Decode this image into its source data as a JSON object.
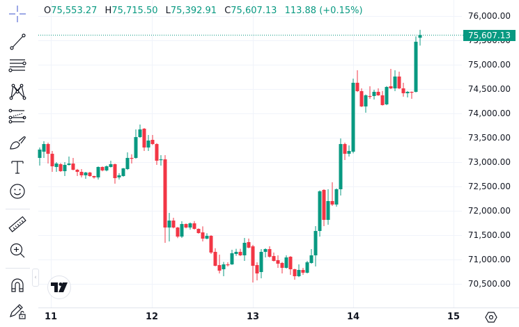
{
  "legend": {
    "o_label": "O",
    "o_value": "75,553.27",
    "h_label": "H",
    "h_value": "75,715.50",
    "l_label": "L",
    "l_value": "75,392.91",
    "c_label": "C",
    "c_value": "75,607.13",
    "change": "113.88 (+0.15%)"
  },
  "toolbar": {
    "tools": [
      {
        "icon": "crosshair-icon",
        "active": true
      },
      {
        "icon": "trend-line-icon"
      },
      {
        "icon": "horizontal-lines-icon"
      },
      {
        "icon": "pattern-icon"
      },
      {
        "icon": "fib-channel-icon"
      },
      {
        "icon": "brush-icon"
      },
      {
        "icon": "text-icon"
      },
      {
        "icon": "emoji-icon"
      },
      {
        "icon": "ruler-icon"
      },
      {
        "icon": "zoom-in-icon"
      },
      {
        "icon": "magnet-icon"
      },
      {
        "icon": "lock-drawings-icon"
      }
    ],
    "collapse_glyph": "‹"
  },
  "price_axis": {
    "labels": [
      "76,000.00",
      "75,500.00",
      "75,000.00",
      "74,500.00",
      "74,000.00",
      "73,500.00",
      "73,000.00",
      "72,500.00",
      "72,000.00",
      "71,500.00",
      "71,000.00",
      "70,500.00"
    ],
    "current_price": "75,607.13"
  },
  "time_axis": {
    "labels": [
      "11",
      "12",
      "13",
      "14",
      "15"
    ]
  },
  "colors": {
    "up": "#089981",
    "down": "#f23645",
    "grid": "#f0f3fa",
    "accent": "#2962ff",
    "text": "#131722"
  },
  "chart_data": {
    "type": "candlestick",
    "title": "",
    "xlabel": "",
    "ylabel": "",
    "interval": "1h",
    "xticks": [
      {
        "label": "11",
        "index": 2.7
      },
      {
        "label": "12",
        "index": 26.8
      },
      {
        "label": "13",
        "index": 51
      },
      {
        "label": "14",
        "index": 75
      },
      {
        "label": "15",
        "index": 99
      }
    ],
    "yticks": [
      76000,
      75500,
      75000,
      74500,
      74000,
      73500,
      73000,
      72500,
      72000,
      71500,
      71000,
      70500
    ],
    "ylim": [
      70300,
      76330
    ],
    "grid": true,
    "last_price": 75607.13,
    "ohlc_fields": [
      "open",
      "high",
      "low",
      "close"
    ],
    "ohlc": [
      [
        73086,
        73300,
        72929,
        73257
      ],
      [
        73214,
        73429,
        73086,
        73371
      ],
      [
        73371,
        73400,
        72971,
        73171
      ],
      [
        73171,
        73229,
        72800,
        72914
      ],
      [
        72900,
        73000,
        72800,
        72971
      ],
      [
        72957,
        72980,
        72800,
        72814
      ],
      [
        72814,
        73000,
        72714,
        72943
      ],
      [
        72943,
        73114,
        72929,
        72971
      ],
      [
        72971,
        73086,
        72830,
        72843
      ],
      [
        72843,
        72860,
        72714,
        72800
      ],
      [
        72800,
        72857,
        72686,
        72729
      ],
      [
        72729,
        72800,
        72657,
        72786
      ],
      [
        72786,
        72800,
        72700,
        72714
      ],
      [
        72714,
        72720,
        72660,
        72686
      ],
      [
        72686,
        72910,
        72643,
        72900
      ],
      [
        72900,
        72910,
        72810,
        72829
      ],
      [
        72829,
        72930,
        72810,
        72914
      ],
      [
        72900,
        73029,
        72890,
        72957
      ],
      [
        72957,
        72970,
        72557,
        72671
      ],
      [
        72686,
        72771,
        72643,
        72729
      ],
      [
        72714,
        72880,
        72700,
        72871
      ],
      [
        72857,
        73200,
        72840,
        73086
      ],
      [
        73086,
        73160,
        72971,
        73070
      ],
      [
        73086,
        73671,
        73070,
        73514
      ],
      [
        73514,
        73771,
        73500,
        73671
      ],
      [
        73686,
        73700,
        73229,
        73300
      ],
      [
        73300,
        73557,
        73229,
        73443
      ],
      [
        73457,
        73557,
        73350,
        73371
      ],
      [
        73371,
        73390,
        72943,
        73029
      ],
      [
        73043,
        73143,
        72929,
        73057
      ],
      [
        73057,
        73143,
        71343,
        71657
      ],
      [
        71657,
        71957,
        71371,
        71800
      ],
      [
        71800,
        71857,
        71640,
        71657
      ],
      [
        71657,
        71670,
        71440,
        71471
      ],
      [
        71471,
        71786,
        71443,
        71729
      ],
      [
        71729,
        71740,
        71640,
        71657
      ],
      [
        71657,
        71760,
        71614,
        71743
      ],
      [
        71743,
        71790,
        71615,
        71629
      ],
      [
        71629,
        71640,
        71530,
        71543
      ],
      [
        71557,
        71680,
        71371,
        71429
      ],
      [
        71429,
        71540,
        71415,
        71486
      ],
      [
        71486,
        71500,
        71114,
        71143
      ],
      [
        71157,
        71232,
        70860,
        70871
      ],
      [
        70886,
        71100,
        70714,
        70771
      ],
      [
        70800,
        70950,
        70657,
        70900
      ],
      [
        70900,
        70943,
        70857,
        70890
      ],
      [
        70900,
        71200,
        70890,
        71129
      ],
      [
        71114,
        71220,
        71075,
        71157
      ],
      [
        71157,
        71220,
        71070,
        71086
      ],
      [
        71086,
        71443,
        70971,
        71343
      ],
      [
        71357,
        71430,
        71230,
        71243
      ],
      [
        71271,
        71300,
        70529,
        70871
      ],
      [
        70886,
        70943,
        70571,
        70714
      ],
      [
        70743,
        71214,
        70614,
        71157
      ],
      [
        71157,
        71230,
        71043,
        71214
      ],
      [
        71214,
        71271,
        71040,
        71057
      ],
      [
        71071,
        71143,
        70960,
        70971
      ],
      [
        70986,
        71086,
        70829,
        70914
      ],
      [
        70929,
        70950,
        70714,
        70829
      ],
      [
        70829,
        71086,
        70815,
        71043
      ],
      [
        71057,
        71070,
        70686,
        70800
      ],
      [
        70800,
        70810,
        70586,
        70657
      ],
      [
        70657,
        70900,
        70640,
        70786
      ],
      [
        70786,
        70829,
        70686,
        70729
      ],
      [
        70729,
        70971,
        70714,
        70943
      ],
      [
        70929,
        71214,
        70914,
        71086
      ],
      [
        71086,
        71686,
        70857,
        71586
      ],
      [
        71586,
        72420,
        71471,
        72400
      ],
      [
        72429,
        72443,
        71686,
        71814
      ],
      [
        71814,
        72443,
        71714,
        72200
      ],
      [
        72200,
        72586,
        72100,
        72129
      ],
      [
        72129,
        72460,
        72086,
        72443
      ],
      [
        72443,
        73486,
        72314,
        73371
      ],
      [
        73371,
        73400,
        73043,
        73171
      ],
      [
        73171,
        73343,
        73114,
        73229
      ],
      [
        73214,
        74714,
        73180,
        74629
      ],
      [
        74629,
        74886,
        74440,
        74457
      ],
      [
        74457,
        74514,
        74130,
        74143
      ],
      [
        74143,
        74390,
        74014,
        74371
      ],
      [
        74357,
        74557,
        74300,
        74350
      ],
      [
        74357,
        74486,
        74286,
        74443
      ],
      [
        74443,
        74514,
        74360,
        74371
      ],
      [
        74371,
        74460,
        74160,
        74171
      ],
      [
        74186,
        74560,
        74170,
        74543
      ],
      [
        74557,
        74914,
        74500,
        74514
      ],
      [
        74514,
        74886,
        74457,
        74757
      ],
      [
        74757,
        74857,
        74500,
        74514
      ],
      [
        74514,
        74629,
        74343,
        74414
      ],
      [
        74414,
        74460,
        74329,
        74443
      ],
      [
        74443,
        74450,
        74300,
        74430
      ],
      [
        74443,
        75580,
        74430,
        75471
      ],
      [
        75553.27,
        75715.5,
        75392.91,
        75607.13
      ]
    ]
  }
}
